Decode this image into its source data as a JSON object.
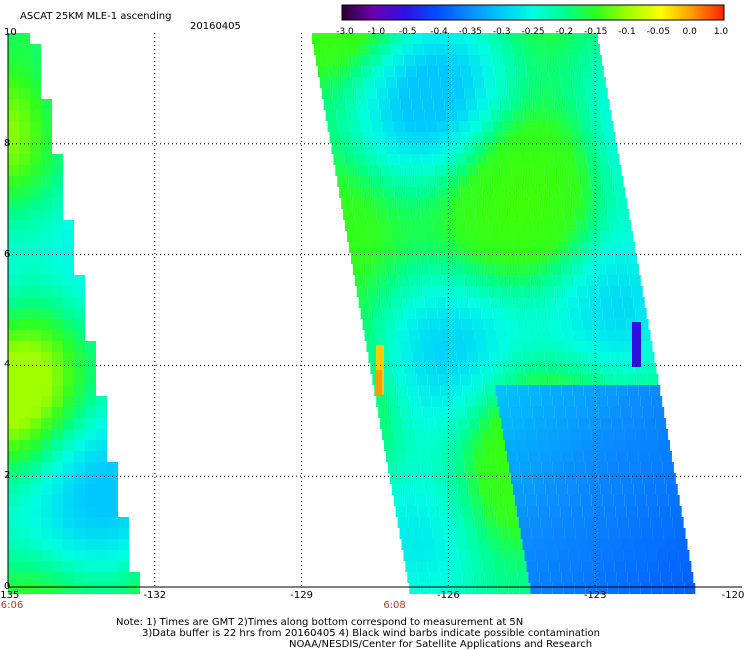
{
  "header": {
    "title": "ASCAT 25KM MLE-1 ascending",
    "date": "20160405"
  },
  "colorbar": {
    "labels": [
      "-3.0",
      "-1.0",
      "-0.5",
      "-0.4",
      "-0.35",
      "-0.3",
      "-0.25",
      "-0.2",
      "-0.15",
      "-0.1",
      "-0.05",
      "0.0",
      "1.0"
    ],
    "colors": [
      "#2a0030",
      "#6a00b0",
      "#3010e0",
      "#0050ff",
      "#0a8cff",
      "#00c8ff",
      "#00ffe0",
      "#00ff90",
      "#30ff20",
      "#a0ff00",
      "#ffff00",
      "#ff9a00",
      "#ff2000"
    ]
  },
  "axes": {
    "x_ticks": [
      "-135",
      "-132",
      "-129",
      "-126",
      "-123",
      "-120"
    ],
    "y_ticks": [
      "0",
      "2",
      "4",
      "6",
      "8",
      "10"
    ],
    "xlim": [
      -135,
      -120
    ],
    "ylim": [
      0,
      10
    ]
  },
  "time_labels": [
    {
      "text": "6:06",
      "lon": -135
    },
    {
      "text": "6:08",
      "lon": -127.1
    }
  ],
  "notes": [
    "Note: 1) Times are GMT 2)Times along bottom correspond to measurement at 5N",
    "3)Data buffer is 22 hrs from 20160405 4) Black wind barbs indicate possible contamination",
    "NOAA/NESDIS/Center for Satellite Applications and Research"
  ]
}
